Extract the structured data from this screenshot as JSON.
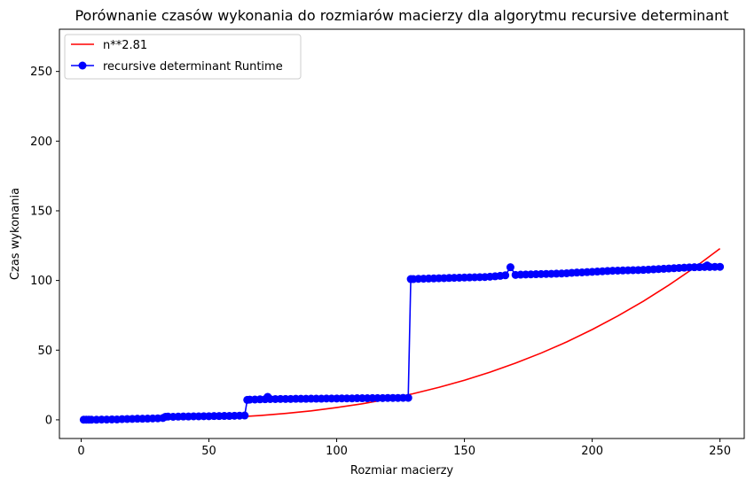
{
  "chart_data": {
    "type": "line",
    "title": "Porównanie czasów wykonania do rozmiarów macierzy dla algorytmu recursive determinant",
    "xlabel": "Rozmiar macierzy",
    "ylabel": "Czas wykonania",
    "xlim": [
      -8.5,
      259.5
    ],
    "ylim": [
      -13.4,
      280.3
    ],
    "xticks": [
      0,
      50,
      100,
      150,
      200,
      250
    ],
    "yticks": [
      0,
      50,
      100,
      150,
      200,
      250
    ],
    "grid": false,
    "legend_position": "top-left",
    "series": [
      {
        "name": "n**2.81",
        "color": "#ff0000",
        "marker": "none",
        "formula": "n**2.81",
        "x": [
          1,
          10,
          20,
          30,
          40,
          50,
          60,
          70,
          80,
          90,
          100,
          110,
          120,
          130,
          140,
          150,
          160,
          170,
          180,
          190,
          200,
          210,
          220,
          230,
          240,
          250
        ],
        "y": [
          0.0,
          0.0,
          0.1,
          0.3,
          0.6,
          1.2,
          2.0,
          3.1,
          4.6,
          6.4,
          8.8,
          11.5,
          14.8,
          18.8,
          23.3,
          28.4,
          34.2,
          40.7,
          47.9,
          55.9,
          64.8,
          74.5,
          85.1,
          96.7,
          109.2,
          122.9
        ]
      },
      {
        "name": "recursive determinant Runtime",
        "color": "#0000ff",
        "marker": "circle",
        "x": [
          1,
          2,
          3,
          4,
          6,
          8,
          10,
          12,
          14,
          16,
          18,
          20,
          22,
          24,
          26,
          28,
          30,
          32,
          33,
          34,
          36,
          38,
          40,
          42,
          44,
          46,
          48,
          50,
          52,
          54,
          56,
          58,
          60,
          62,
          64,
          65,
          66,
          68,
          70,
          72,
          73,
          74,
          76,
          78,
          80,
          82,
          84,
          86,
          88,
          90,
          92,
          94,
          96,
          98,
          100,
          102,
          104,
          106,
          108,
          110,
          112,
          114,
          116,
          118,
          120,
          122,
          124,
          126,
          128,
          129,
          130,
          132,
          134,
          136,
          138,
          140,
          142,
          144,
          146,
          148,
          150,
          152,
          154,
          156,
          158,
          160,
          162,
          164,
          166,
          168,
          170,
          172,
          174,
          176,
          178,
          180,
          182,
          184,
          186,
          188,
          190,
          192,
          194,
          196,
          198,
          200,
          202,
          204,
          206,
          208,
          210,
          212,
          214,
          216,
          218,
          220,
          222,
          224,
          226,
          228,
          230,
          232,
          234,
          236,
          238,
          240,
          242,
          244,
          245,
          246,
          248,
          250
        ],
        "y": [
          0.1,
          0.1,
          0.1,
          0.1,
          0.1,
          0.2,
          0.2,
          0.3,
          0.3,
          0.5,
          0.6,
          0.7,
          0.8,
          0.8,
          0.9,
          1.0,
          1.1,
          1.3,
          2.2,
          2.3,
          2.2,
          2.3,
          2.4,
          2.4,
          2.5,
          2.5,
          2.6,
          2.6,
          2.7,
          2.7,
          2.8,
          2.8,
          2.9,
          3.0,
          3.1,
          14.3,
          14.5,
          14.6,
          14.7,
          14.8,
          16.5,
          14.9,
          14.9,
          15.0,
          15.0,
          15.0,
          15.1,
          15.1,
          15.1,
          15.2,
          15.2,
          15.2,
          15.3,
          15.3,
          15.3,
          15.4,
          15.4,
          15.4,
          15.5,
          15.5,
          15.5,
          15.6,
          15.6,
          15.6,
          15.7,
          15.7,
          15.7,
          15.8,
          15.8,
          101.0,
          101.0,
          101.2,
          101.3,
          101.4,
          101.5,
          101.6,
          101.7,
          101.8,
          101.9,
          102.0,
          102.1,
          102.2,
          102.3,
          102.4,
          102.5,
          102.7,
          103.0,
          103.3,
          103.7,
          109.5,
          104.0,
          104.2,
          104.3,
          104.4,
          104.5,
          104.6,
          104.7,
          104.8,
          104.9,
          105.0,
          105.2,
          105.5,
          105.7,
          105.8,
          106.0,
          106.2,
          106.4,
          106.6,
          106.8,
          107.0,
          107.1,
          107.2,
          107.3,
          107.4,
          107.5,
          107.6,
          107.8,
          108.0,
          108.2,
          108.4,
          108.6,
          108.8,
          109.0,
          109.2,
          109.4,
          109.5,
          109.6,
          109.7,
          110.8,
          109.7,
          109.8,
          109.8
        ]
      }
    ]
  }
}
